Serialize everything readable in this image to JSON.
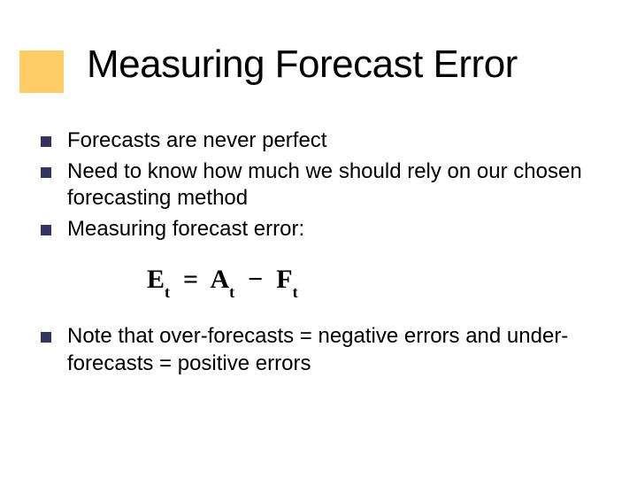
{
  "slide": {
    "title": "Measuring Forecast Error",
    "accent_color": "#ffcc66",
    "bullet_color": "#333366",
    "title_fontsize": 44,
    "body_fontsize": 24,
    "bullets": [
      {
        "text": "Forecasts are never perfect"
      },
      {
        "text": "Need to know how much we should rely on our chosen forecasting method"
      },
      {
        "text_prefix": "Measuring ",
        "text_emph": "forecast error",
        "text_suffix": ":"
      },
      {
        "text": "Note that over-forecasts = negative errors and under-forecasts = positive errors"
      }
    ],
    "formula": {
      "lhs_var": "E",
      "lhs_sub": "t",
      "rhs1_var": "A",
      "rhs1_sub": "t",
      "op": "−",
      "rhs2_var": "F",
      "rhs2_sub": "t",
      "font_family": "Times New Roman",
      "fontsize": 30
    }
  }
}
